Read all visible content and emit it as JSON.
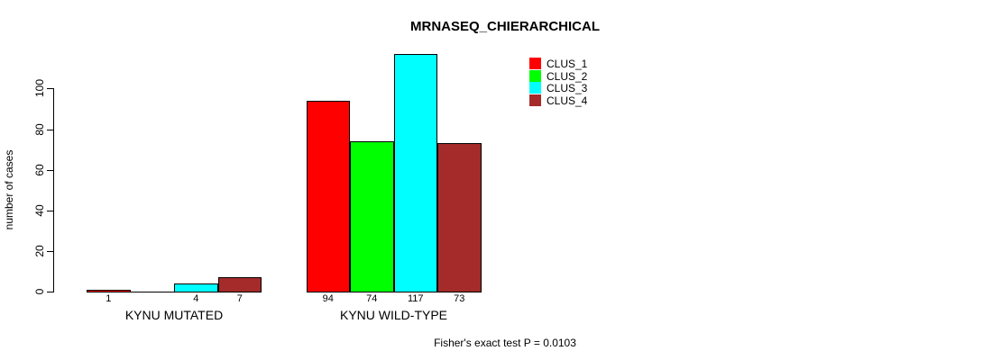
{
  "title": "MRNASEQ_CHIERARCHICAL",
  "footnote": "Fisher's exact test P = 0.0103",
  "chart_data": {
    "type": "bar",
    "title": "MRNASEQ_CHIERARCHICAL",
    "xlabel": "",
    "ylabel": "number of cases",
    "ylim": [
      0,
      120
    ],
    "yticks": [
      0,
      20,
      40,
      60,
      80,
      100
    ],
    "grid": false,
    "legend_position": "top-right",
    "categories": [
      "KYNU MUTATED",
      "KYNU WILD-TYPE"
    ],
    "series": [
      {
        "name": "CLUS_1",
        "color": "#FF0000",
        "values": [
          1,
          94
        ]
      },
      {
        "name": "CLUS_2",
        "color": "#00FF00",
        "values": [
          0,
          74
        ]
      },
      {
        "name": "CLUS_3",
        "color": "#00FFFF",
        "values": [
          4,
          117
        ]
      },
      {
        "name": "CLUS_4",
        "color": "#A52A2A",
        "values": [
          7,
          73
        ]
      }
    ],
    "bar_value_labels": [
      [
        "1",
        "",
        "4",
        "7"
      ],
      [
        "94",
        "74",
        "117",
        "73"
      ]
    ],
    "annotation": "Fisher's exact test P = 0.0103",
    "axis_color": "#000000",
    "bar_border_color": "#000000"
  }
}
